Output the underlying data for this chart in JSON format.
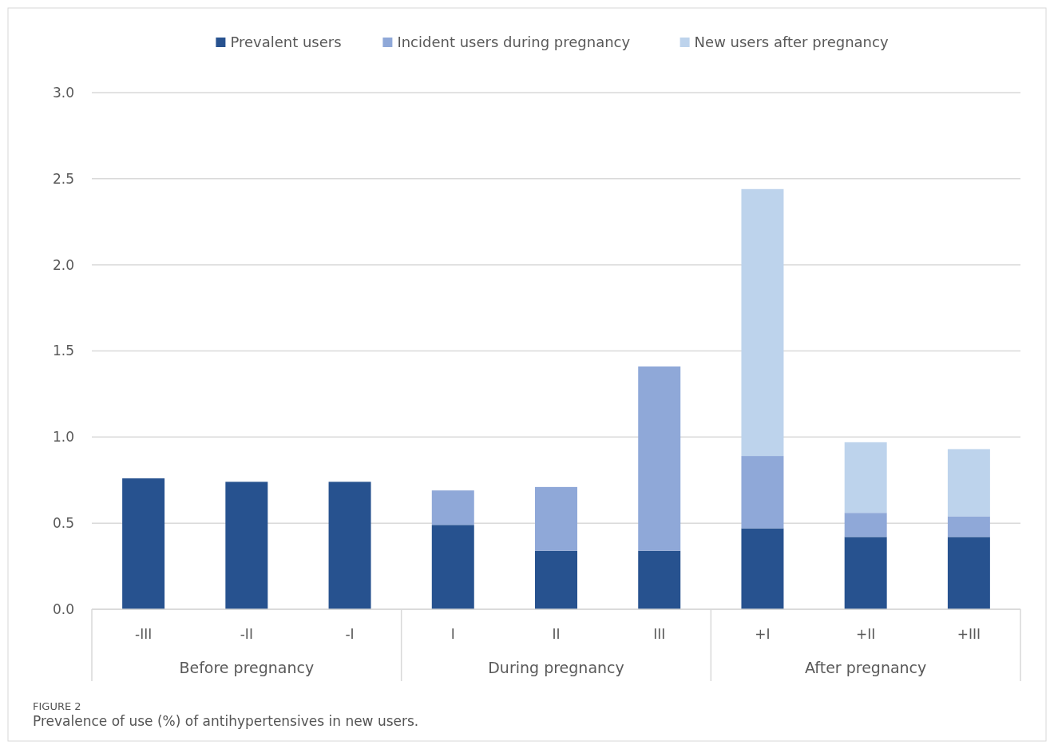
{
  "chart_data": {
    "type": "bar",
    "stacked": true,
    "categories": [
      "-III",
      "-II",
      "-I",
      "I",
      "II",
      "III",
      "+I",
      "+II",
      "+III"
    ],
    "series": [
      {
        "name": "Prevalent users",
        "color": "#27528f",
        "values": [
          0.76,
          0.74,
          0.74,
          0.49,
          0.34,
          0.34,
          0.47,
          0.42,
          0.42
        ]
      },
      {
        "name": "Incident users during pregnancy",
        "color": "#8fa8d8",
        "values": [
          0,
          0,
          0,
          0.2,
          0.37,
          1.07,
          0.42,
          0.14,
          0.12
        ]
      },
      {
        "name": "New users after pregnancy",
        "color": "#bdd3ec",
        "values": [
          0,
          0,
          0,
          0,
          0,
          0,
          1.55,
          0.41,
          0.39
        ]
      }
    ],
    "ylim": [
      0,
      3
    ],
    "yticks": [
      {
        "value": 0,
        "label": "0.0"
      },
      {
        "value": 0.5,
        "label": "0.5"
      },
      {
        "value": 1,
        "label": "1.0"
      },
      {
        "value": 1.5,
        "label": "1.5"
      },
      {
        "value": 2,
        "label": "2.0"
      },
      {
        "value": 2.5,
        "label": "2.5"
      },
      {
        "value": 3,
        "label": "3.0"
      }
    ],
    "grid": "y",
    "legend": "top",
    "title": "FIGURE 2",
    "subtitle": "Prevalence of use (%) of antihypertensives in new users.",
    "annotations": [
      "Before pregnancy",
      "During pregnancy",
      "After pregnancy"
    ]
  }
}
